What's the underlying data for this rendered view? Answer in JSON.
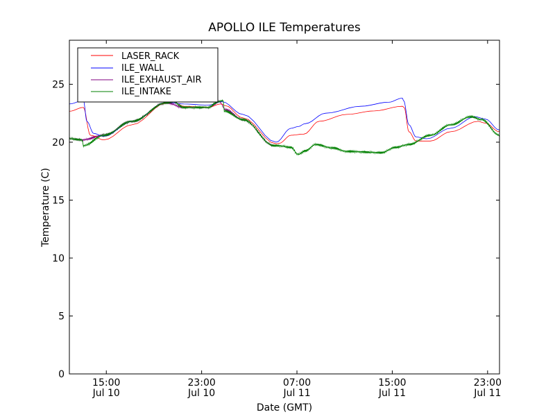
{
  "chart_data": {
    "type": "line",
    "title": "APOLLO ILE Temperatures",
    "xlabel": "Date (GMT)",
    "ylabel": "Temperature (C)",
    "x_units": "hours since Jul 10 00:00 GMT",
    "xlim": [
      11.9,
      48.0
    ],
    "ylim": [
      0,
      28.8
    ],
    "grid": false,
    "legend_position": "top-left",
    "yticks": [
      0,
      5,
      10,
      15,
      20,
      25
    ],
    "xticks": [
      {
        "value": 15,
        "label1": "15:00",
        "label2": "Jul 10"
      },
      {
        "value": 23,
        "label1": "23:00",
        "label2": "Jul 10"
      },
      {
        "value": 31,
        "label1": "07:00",
        "label2": "Jul 11"
      },
      {
        "value": 39,
        "label1": "15:00",
        "label2": "Jul 11"
      },
      {
        "value": 47,
        "label1": "23:00",
        "label2": "Jul 11"
      }
    ],
    "series": [
      {
        "name": "LASER_RACK",
        "color": "#ff0000",
        "x": [
          11.9,
          13.08,
          13.66,
          14.8,
          17.15,
          20.06,
          20.6,
          21.5,
          23.55,
          24.6,
          25.0,
          26.46,
          29.25,
          29.5,
          30.5,
          31.58,
          32.86,
          35.19,
          37.5,
          39.84,
          40.0,
          40.4,
          41.0,
          42.2,
          43.9,
          46.2,
          46.8,
          48.0
        ],
        "y": [
          22.67,
          23.0,
          20.6,
          20.2,
          21.5,
          23.4,
          23.5,
          23.1,
          23.0,
          23.3,
          23.15,
          22.1,
          19.86,
          19.9,
          20.6,
          20.7,
          21.8,
          22.4,
          22.7,
          23.1,
          23.0,
          20.9,
          20.1,
          20.1,
          20.9,
          21.8,
          21.65,
          20.9
        ]
      },
      {
        "name": "ILE_WALL",
        "color": "#0000ff",
        "x": [
          11.9,
          13.08,
          13.37,
          13.95,
          14.8,
          17.15,
          20.06,
          21.5,
          23.55,
          24.7,
          26.46,
          29.25,
          30.5,
          31.1,
          31.7,
          33.4,
          36.35,
          38.7,
          39.84,
          39.95,
          40.4,
          41.0,
          41.9,
          43.9,
          45.95,
          46.8,
          48.0
        ],
        "y": [
          23.3,
          23.6,
          21.8,
          20.75,
          20.5,
          21.8,
          23.45,
          23.3,
          23.2,
          23.5,
          22.4,
          20.0,
          21.2,
          21.35,
          21.6,
          22.5,
          23.1,
          23.45,
          23.8,
          23.6,
          21.5,
          20.45,
          20.3,
          21.2,
          22.2,
          22.0,
          21.05
        ]
      },
      {
        "name": "ILE_EXHAUST_AIR",
        "color": "#800080",
        "x": [
          11.9,
          13.0,
          14.8,
          17.15,
          20.06,
          21.5,
          23.55,
          24.5,
          25.0,
          26.46,
          29.1
        ],
        "y": [
          20.3,
          20.2,
          20.6,
          21.8,
          23.4,
          23.0,
          23.0,
          23.5,
          22.8,
          21.95,
          19.7
        ]
      },
      {
        "name": "ILE_INTAKE",
        "color": "#008000",
        "x": [
          11.9,
          12.96,
          13.08,
          14.8,
          17.15,
          20.06,
          20.6,
          21.5,
          23.55,
          24.4,
          24.8,
          24.9,
          26.46,
          29.08,
          29.4,
          30.5,
          31.1,
          31.7,
          32.57,
          34.0,
          35.2,
          38.1,
          39.26,
          40.4,
          42.2,
          43.9,
          45.6,
          46.5,
          48.0
        ],
        "y": [
          20.3,
          20.2,
          19.7,
          20.6,
          21.8,
          23.4,
          23.5,
          23.0,
          23.0,
          23.5,
          23.6,
          22.7,
          21.95,
          19.7,
          19.7,
          19.55,
          18.95,
          19.25,
          19.8,
          19.5,
          19.2,
          19.1,
          19.55,
          19.8,
          20.6,
          21.5,
          22.2,
          21.95,
          20.6
        ]
      }
    ]
  }
}
